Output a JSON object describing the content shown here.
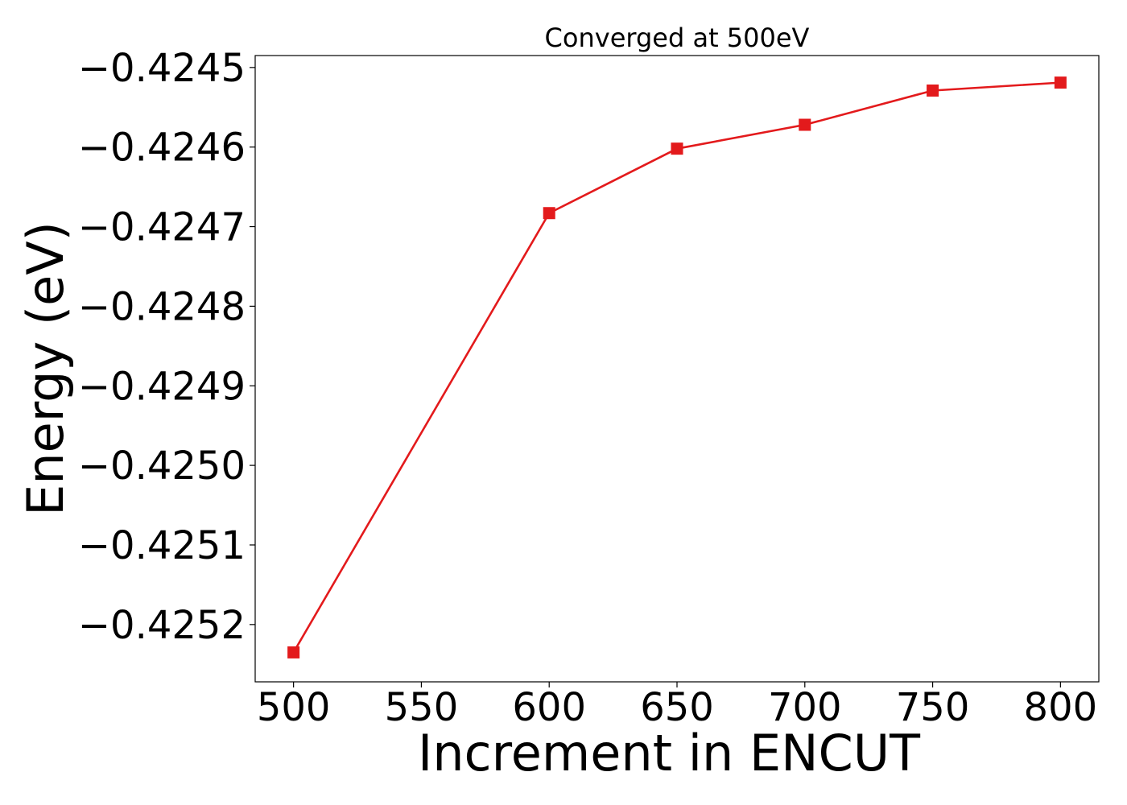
{
  "chart_data": {
    "type": "line",
    "title": "Converged at 500eV",
    "xlabel": "Increment in ENCUT",
    "ylabel": "Energy (eV)",
    "x": [
      500,
      600,
      650,
      700,
      750,
      800
    ],
    "series": [
      {
        "values": [
          -0.425235,
          -0.424683,
          -0.424602,
          -0.424572,
          -0.424529,
          -0.424519
        ],
        "color": "#e31a1c",
        "marker": "square"
      }
    ],
    "xlim": [
      485,
      815
    ],
    "ylim": [
      -0.425272,
      -0.424485
    ],
    "xticks": [
      500,
      550,
      600,
      650,
      700,
      750,
      800
    ],
    "xtick_labels": [
      "500",
      "550",
      "600",
      "650",
      "700",
      "750",
      "800"
    ],
    "yticks": [
      -0.4252,
      -0.4251,
      -0.425,
      -0.4249,
      -0.4248,
      -0.4247,
      -0.4246,
      -0.4245
    ],
    "ytick_labels": [
      "−0.4252",
      "−0.4251",
      "−0.4250",
      "−0.4249",
      "−0.4248",
      "−0.4247",
      "−0.4246",
      "−0.4245"
    ],
    "grid": false,
    "legend": false
  }
}
